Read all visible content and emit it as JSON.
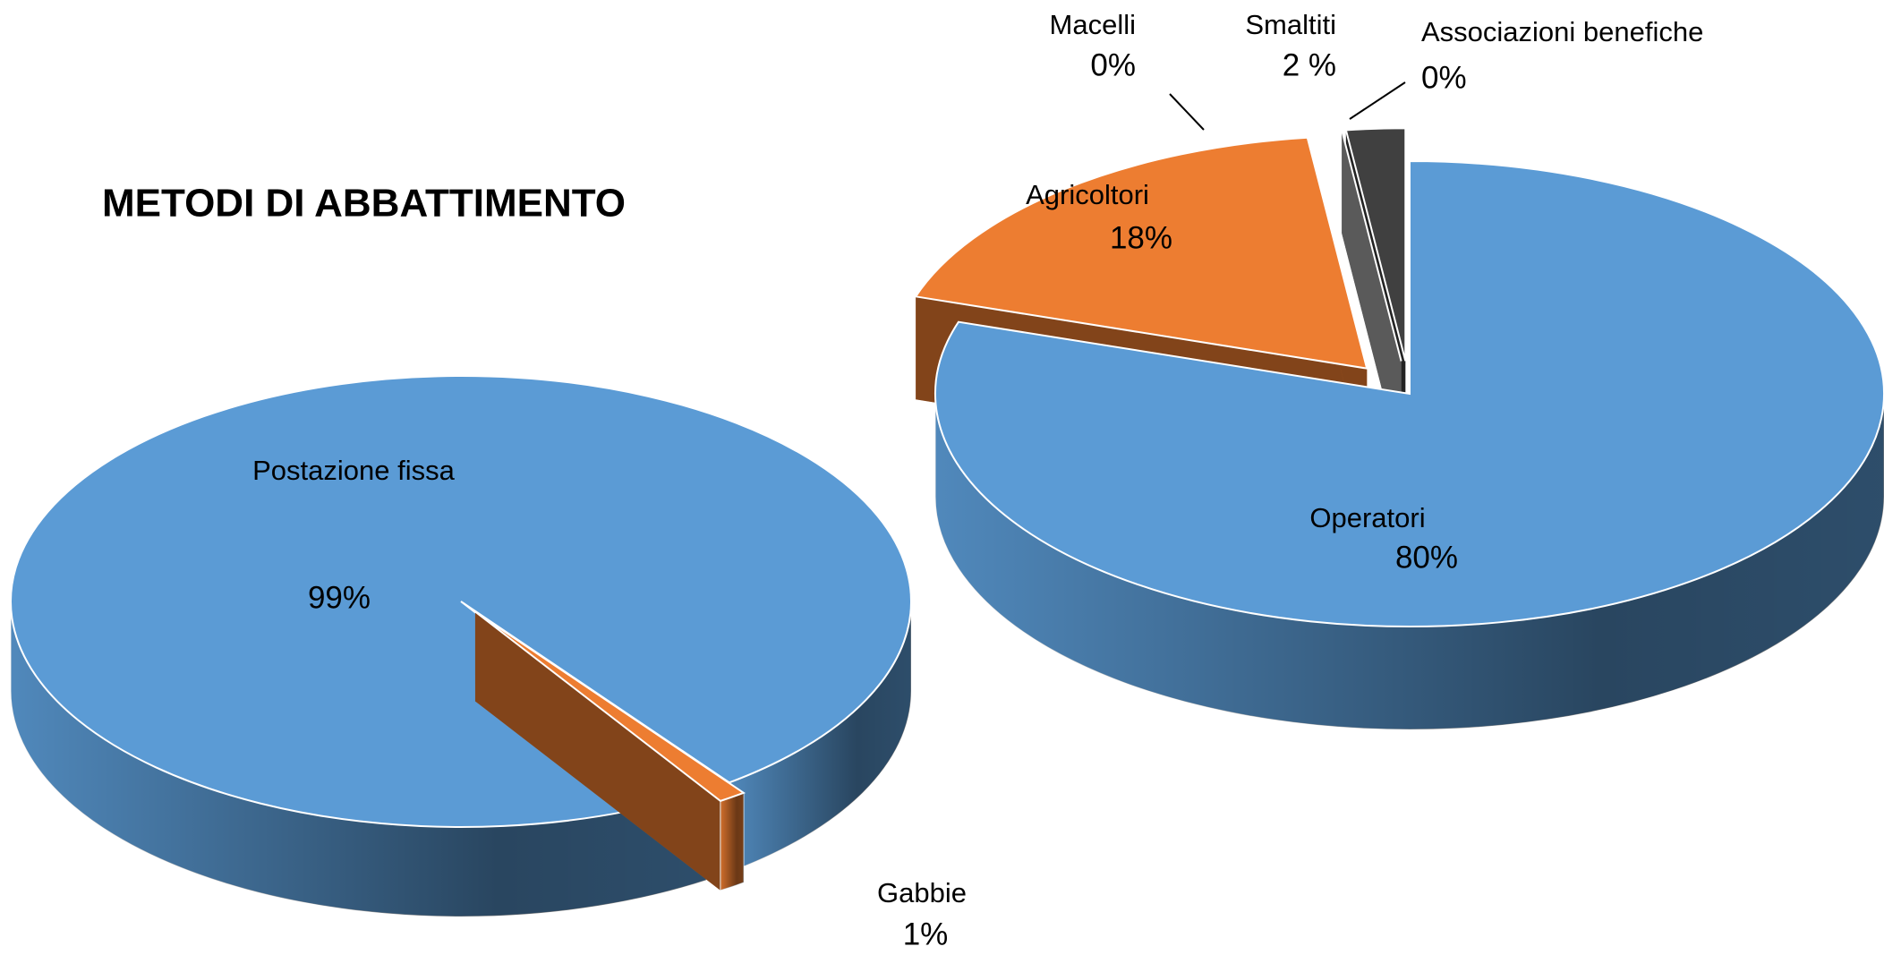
{
  "chart_data": [
    {
      "type": "pie",
      "title": "METODI DI ABBATTIMENTO",
      "categories": [
        "Postazione fissa",
        "Gabbie"
      ],
      "values": [
        99,
        1
      ],
      "value_labels": [
        "99%",
        "1%"
      ],
      "colors": [
        "#5b9bd5",
        "#ed7d31"
      ]
    },
    {
      "type": "pie",
      "categories": [
        "Operatori",
        "Agricoltori",
        "Macelli",
        "Smaltiti",
        "Associazioni benefiche"
      ],
      "values": [
        80,
        18,
        0,
        2,
        0
      ],
      "value_labels": [
        "80%",
        "18%",
        "0%",
        "2 %",
        "0%"
      ],
      "colors": [
        "#5b9bd5",
        "#ed7d31",
        "#a5a5a5",
        "#404040",
        "#ffc000"
      ]
    }
  ]
}
